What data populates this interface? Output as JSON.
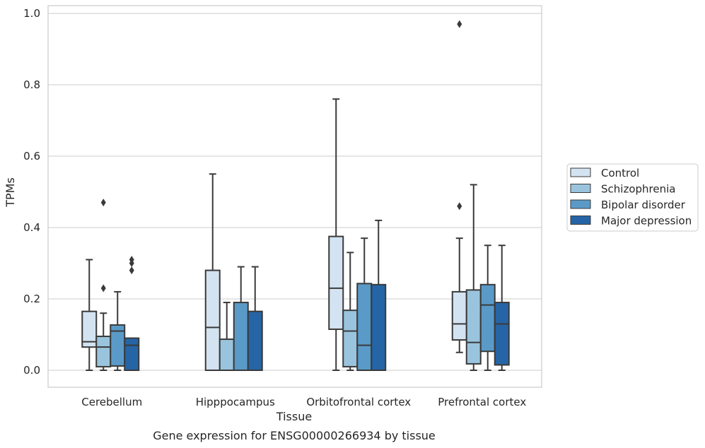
{
  "chart_data": {
    "type": "boxplot",
    "title": "",
    "caption": "Gene expression for ENSG00000266934 by tissue",
    "xlabel": "Tissue",
    "ylabel": "TPMs",
    "ylim": [
      -0.045,
      1.02
    ],
    "yticks": [
      0.0,
      0.2,
      0.4,
      0.6,
      0.8,
      1.0
    ],
    "ytick_labels": [
      "0.0",
      "0.2",
      "0.4",
      "0.6",
      "0.8",
      "1.0"
    ],
    "grid": true,
    "legend_position": "right",
    "categories": [
      "Cerebellum",
      "Hipppocampus",
      "Orbitofrontal cortex",
      "Prefrontal cortex"
    ],
    "series": [
      {
        "name": "Control",
        "color": "#d3e3f1",
        "boxes": [
          {
            "whislo": 0.0,
            "q1": 0.065,
            "med": 0.08,
            "q3": 0.165,
            "whishi": 0.31,
            "fliers": []
          },
          {
            "whislo": 0.0,
            "q1": 0.0,
            "med": 0.12,
            "q3": 0.28,
            "whishi": 0.55,
            "fliers": []
          },
          {
            "whislo": 0.0,
            "q1": 0.115,
            "med": 0.23,
            "q3": 0.375,
            "whishi": 0.76,
            "fliers": []
          },
          {
            "whislo": 0.05,
            "q1": 0.085,
            "med": 0.13,
            "q3": 0.22,
            "whishi": 0.37,
            "fliers": [
              0.46,
              0.97
            ]
          }
        ]
      },
      {
        "name": "Schizophrenia",
        "color": "#9ac4dd",
        "boxes": [
          {
            "whislo": 0.0,
            "q1": 0.01,
            "med": 0.065,
            "q3": 0.095,
            "whishi": 0.16,
            "fliers": [
              0.23,
              0.47
            ]
          },
          {
            "whislo": 0.0,
            "q1": 0.0,
            "med": 0.0,
            "q3": 0.087,
            "whishi": 0.19,
            "fliers": []
          },
          {
            "whislo": 0.0,
            "q1": 0.01,
            "med": 0.11,
            "q3": 0.168,
            "whishi": 0.33,
            "fliers": []
          },
          {
            "whislo": 0.0,
            "q1": 0.018,
            "med": 0.078,
            "q3": 0.225,
            "whishi": 0.52,
            "fliers": []
          }
        ]
      },
      {
        "name": "Bipolar disorder",
        "color": "#5a9ac8",
        "boxes": [
          {
            "whislo": 0.0,
            "q1": 0.012,
            "med": 0.11,
            "q3": 0.127,
            "whishi": 0.22,
            "fliers": []
          },
          {
            "whislo": 0.0,
            "q1": 0.0,
            "med": 0.0,
            "q3": 0.19,
            "whishi": 0.29,
            "fliers": []
          },
          {
            "whislo": 0.0,
            "q1": 0.0,
            "med": 0.07,
            "q3": 0.243,
            "whishi": 0.37,
            "fliers": []
          },
          {
            "whislo": 0.0,
            "q1": 0.053,
            "med": 0.183,
            "q3": 0.24,
            "whishi": 0.35,
            "fliers": []
          }
        ]
      },
      {
        "name": "Major depression",
        "color": "#2565a6",
        "boxes": [
          {
            "whislo": 0.0,
            "q1": 0.0,
            "med": 0.07,
            "q3": 0.09,
            "whishi": 0.09,
            "fliers": [
              0.28,
              0.3,
              0.31
            ]
          },
          {
            "whislo": 0.0,
            "q1": 0.0,
            "med": 0.0,
            "q3": 0.165,
            "whishi": 0.29,
            "fliers": []
          },
          {
            "whislo": 0.0,
            "q1": 0.0,
            "med": 0.0,
            "q3": 0.24,
            "whishi": 0.42,
            "fliers": []
          },
          {
            "whislo": 0.0,
            "q1": 0.015,
            "med": 0.13,
            "q3": 0.19,
            "whishi": 0.35,
            "fliers": []
          }
        ]
      }
    ]
  }
}
